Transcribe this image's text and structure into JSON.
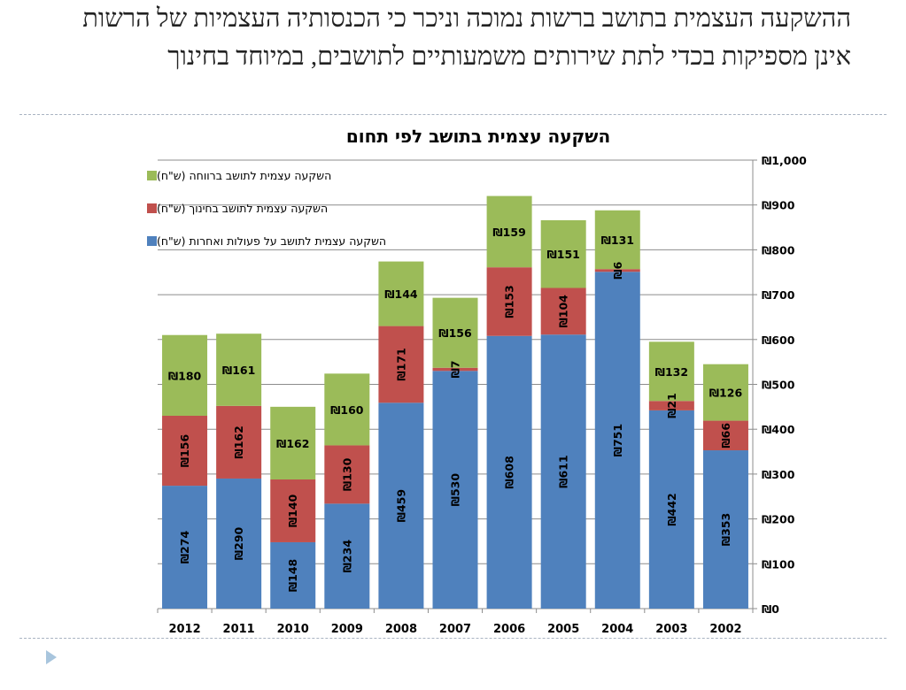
{
  "slide": {
    "title": "ההשקעה העצמית בתושב ברשות נמוכה וניכר כי הכנסותיה העצמיות של הרשות אינן מספיקות בכדי לתת שירותים משמעותיים לתושבים, במיוחד בחינוך"
  },
  "chart_data": {
    "type": "bar",
    "stacked": true,
    "title": "השקעה עצמית בתושב לפי תחום",
    "categories": [
      "2012",
      "2011",
      "2010",
      "2009",
      "2008",
      "2007",
      "2006",
      "2005",
      "2004",
      "2003",
      "2002"
    ],
    "series": [
      {
        "name": "השקעה עצמית לתושב על פעולות ואחרות (ש\"ח)",
        "color": "#4f81bd",
        "values": [
          274,
          290,
          148,
          234,
          459,
          530,
          608,
          611,
          751,
          442,
          353
        ]
      },
      {
        "name": "השקעה עצמית לתושב בחינוך (ש\"ח)",
        "color": "#c0504d",
        "values": [
          156,
          162,
          140,
          130,
          171,
          7,
          153,
          104,
          6,
          21,
          66
        ]
      },
      {
        "name": "השקעה עצמית לתושב ברווחה (ש\"ח)",
        "color": "#9bbb59",
        "values": [
          180,
          161,
          162,
          160,
          144,
          156,
          159,
          151,
          131,
          132,
          126
        ]
      }
    ],
    "ylim": [
      0,
      1000
    ],
    "yticks": [
      0,
      100,
      200,
      300,
      400,
      500,
      600,
      700,
      800,
      900,
      1000
    ],
    "y_tick_labels": [
      "₪0",
      "₪100",
      "₪200",
      "₪300",
      "₪400",
      "₪500",
      "₪600",
      "₪700",
      "₪800",
      "₪900",
      "₪1,000"
    ],
    "value_prefix": "₪",
    "y_axis_side": "right",
    "grid": true,
    "legend_position": "top-left"
  }
}
